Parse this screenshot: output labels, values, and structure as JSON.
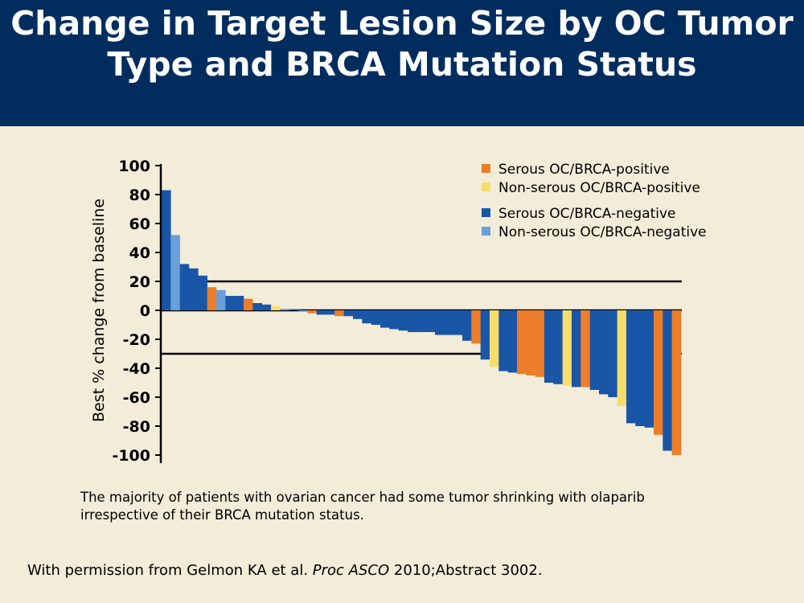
{
  "title": "Change in Target Lesion Size by OC Tumor Type and BRCA Mutation Status",
  "caption": "The majority of patients with ovarian cancer had some tumor shrinking with olaparib irrespective of their BRCA mutation status.",
  "citation": {
    "prefix": "With permission from Gelmon KA et al. ",
    "journal": "Proc ASCO",
    "suffix": " 2010;Abstract 3002."
  },
  "colors": {
    "header_bg": "#002d5e",
    "background": "#f2ecd9",
    "serous_brca_pos": "#ec7d2a",
    "nonserous_brca_pos": "#f7de6a",
    "serous_brca_neg": "#1a56a8",
    "nonserous_brca_neg": "#69a0da"
  },
  "chart_data": {
    "type": "bar",
    "ylabel": "Best % change from baseline",
    "ylim": [
      -100,
      100
    ],
    "yticks": [
      100,
      80,
      60,
      40,
      20,
      0,
      -20,
      -40,
      -60,
      -80,
      -100
    ],
    "reference_lines": [
      20,
      0,
      -30
    ],
    "legend_placement": "top-right",
    "legend": [
      {
        "key": "sp",
        "label": "Serous OC/BRCA-positive"
      },
      {
        "key": "np",
        "label": "Non-serous OC/BRCA-positive"
      },
      {
        "key": "sn",
        "label": "Serous OC/BRCA-negative"
      },
      {
        "key": "nn",
        "label": "Non-serous OC/BRCA-negative"
      }
    ],
    "bars": [
      {
        "value": 83,
        "group": "sn"
      },
      {
        "value": 52,
        "group": "nn"
      },
      {
        "value": 32,
        "group": "sn"
      },
      {
        "value": 29,
        "group": "sn"
      },
      {
        "value": 24,
        "group": "sn"
      },
      {
        "value": 16,
        "group": "sp"
      },
      {
        "value": 14,
        "group": "nn"
      },
      {
        "value": 10,
        "group": "sn"
      },
      {
        "value": 10,
        "group": "sn"
      },
      {
        "value": 8,
        "group": "sp"
      },
      {
        "value": 5,
        "group": "sn"
      },
      {
        "value": 4,
        "group": "sn"
      },
      {
        "value": 3,
        "group": "np"
      },
      {
        "value": 1,
        "group": "nn"
      },
      {
        "value": 0,
        "group": "sn"
      },
      {
        "value": -1,
        "group": "nn"
      },
      {
        "value": -2,
        "group": "sp"
      },
      {
        "value": -3,
        "group": "sn"
      },
      {
        "value": -3,
        "group": "sn"
      },
      {
        "value": -4,
        "group": "sp"
      },
      {
        "value": -4,
        "group": "sn"
      },
      {
        "value": -6,
        "group": "sn"
      },
      {
        "value": -9,
        "group": "sn"
      },
      {
        "value": -10,
        "group": "sn"
      },
      {
        "value": -12,
        "group": "sn"
      },
      {
        "value": -13,
        "group": "sn"
      },
      {
        "value": -14,
        "group": "sn"
      },
      {
        "value": -15,
        "group": "sn"
      },
      {
        "value": -15,
        "group": "sn"
      },
      {
        "value": -15,
        "group": "sn"
      },
      {
        "value": -17,
        "group": "sn"
      },
      {
        "value": -17,
        "group": "sn"
      },
      {
        "value": -17,
        "group": "sn"
      },
      {
        "value": -21,
        "group": "sn"
      },
      {
        "value": -23,
        "group": "sp"
      },
      {
        "value": -34,
        "group": "sn"
      },
      {
        "value": -39,
        "group": "np"
      },
      {
        "value": -42,
        "group": "sn"
      },
      {
        "value": -43,
        "group": "sn"
      },
      {
        "value": -44,
        "group": "sp"
      },
      {
        "value": -45,
        "group": "sp"
      },
      {
        "value": -46,
        "group": "sp"
      },
      {
        "value": -50,
        "group": "sn"
      },
      {
        "value": -51,
        "group": "sn"
      },
      {
        "value": -52,
        "group": "np"
      },
      {
        "value": -53,
        "group": "sn"
      },
      {
        "value": -53,
        "group": "sp"
      },
      {
        "value": -55,
        "group": "sn"
      },
      {
        "value": -58,
        "group": "sn"
      },
      {
        "value": -60,
        "group": "sn"
      },
      {
        "value": -66,
        "group": "np"
      },
      {
        "value": -78,
        "group": "sn"
      },
      {
        "value": -80,
        "group": "sn"
      },
      {
        "value": -81,
        "group": "sn"
      },
      {
        "value": -86,
        "group": "sp"
      },
      {
        "value": -97,
        "group": "sn"
      },
      {
        "value": -100,
        "group": "sp"
      }
    ]
  }
}
